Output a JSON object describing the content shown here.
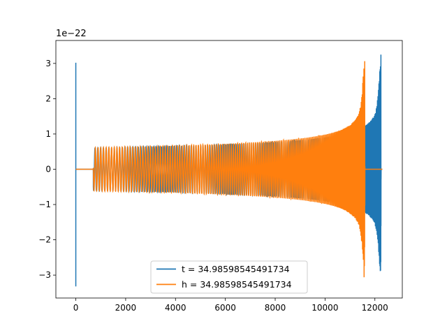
{
  "chart_data": {
    "type": "line",
    "title": "",
    "xlabel": "",
    "ylabel": "",
    "offset_label": "1e−22",
    "xlim": [
      -800,
      13100
    ],
    "ylim": [
      -3.65,
      3.65
    ],
    "x_ticks": [
      0,
      2000,
      4000,
      6000,
      8000,
      10000,
      12000
    ],
    "x_tick_labels": [
      "0",
      "2000",
      "4000",
      "6000",
      "8000",
      "10000",
      "12000"
    ],
    "y_ticks": [
      -3,
      -2,
      -1,
      0,
      1,
      2,
      3
    ],
    "y_tick_labels": [
      "−3",
      "−2",
      "−1",
      "0",
      "1",
      "2",
      "3"
    ],
    "grid": false,
    "legend_position": "lower-center",
    "series": [
      {
        "name": "t = 34.98598545491734",
        "color": "#1f77b4",
        "description_points": {
          "initial_spike": {
            "x": 0,
            "max": 3.02,
            "min": -3.32
          },
          "chirp_start_x": 700,
          "chirp_start_amplitude": 0.6,
          "merger_x": 12250,
          "merger_peak": 3.3,
          "merger_trough": -2.9,
          "end_x": 12300
        }
      },
      {
        "name": "h = 34.98598545491734",
        "color": "#ff7f0e",
        "description_points": {
          "flat_segment": [
            0,
            700
          ],
          "chirp_start_x": 0,
          "chirp_start_amplitude": 0.6,
          "merger_x": 11600,
          "merger_peak": 3.3,
          "merger_trough": -3.32,
          "end_x": 12300
        }
      }
    ]
  }
}
